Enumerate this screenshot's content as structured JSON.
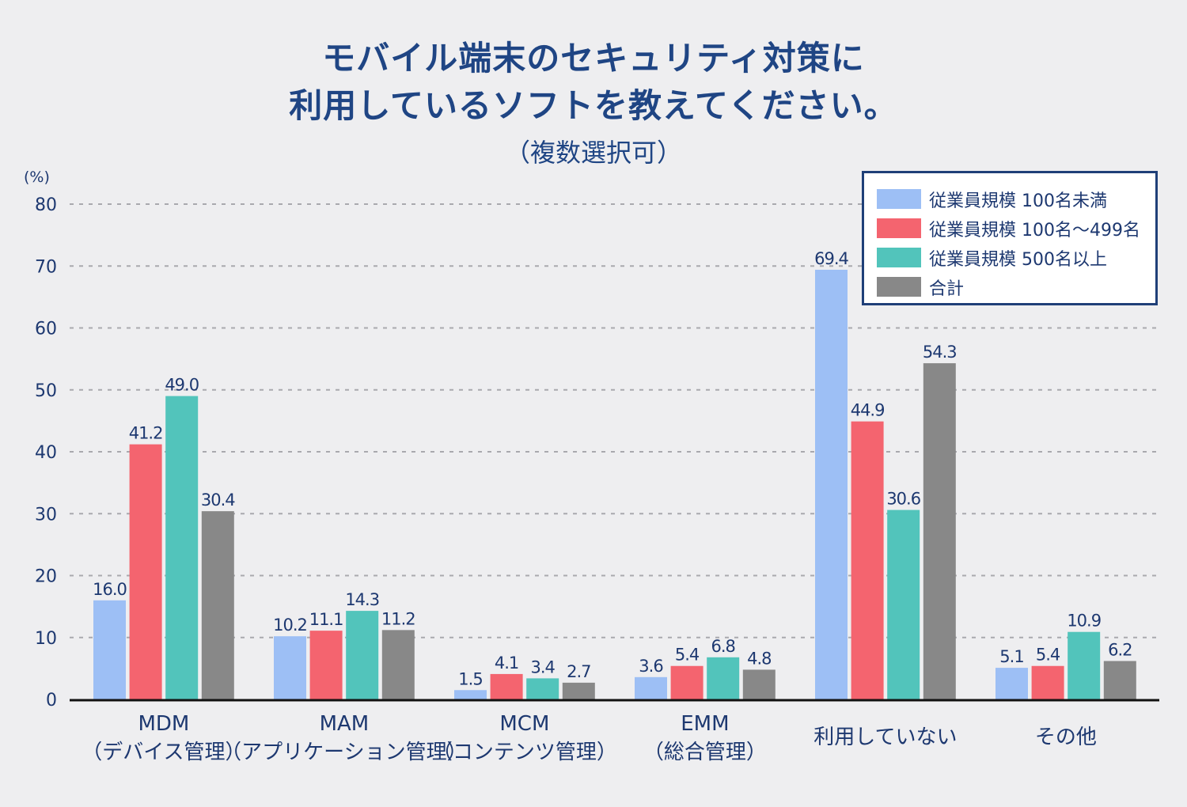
{
  "title": {
    "line1": "モバイル端末のセキュリティ対策に",
    "line2": "利用しているソフトを教えてください。",
    "subtitle": "（複数選択可）"
  },
  "chart_data": {
    "type": "bar",
    "title": "モバイル端末のセキュリティ対策に利用しているソフトを教えてください。（複数選択可）",
    "xlabel": "",
    "ylabel": "(%)",
    "ylim": [
      0,
      80
    ],
    "yticks": [
      0,
      10,
      20,
      30,
      40,
      50,
      60,
      70,
      80
    ],
    "grid": true,
    "legend_position": "top-right",
    "categories": [
      {
        "line1": "MDM",
        "line2": "（デバイス管理）"
      },
      {
        "line1": "MAM",
        "line2": "（アプリケーション管理）"
      },
      {
        "line1": "MCM",
        "line2": "（コンテンツ管理）"
      },
      {
        "line1": "EMM",
        "line2": "（総合管理）"
      },
      {
        "line1": "利用していない",
        "line2": ""
      },
      {
        "line1": "その他",
        "line2": ""
      }
    ],
    "series": [
      {
        "name": "従業員規模 100名未満",
        "color": "#9dbff5",
        "values": [
          16.0,
          10.2,
          1.5,
          3.6,
          69.4,
          5.1
        ]
      },
      {
        "name": "従業員規模 100名〜499名",
        "color": "#f4646f",
        "values": [
          41.2,
          11.1,
          4.1,
          5.4,
          44.9,
          5.4
        ]
      },
      {
        "name": "従業員規模 500名以上",
        "color": "#52c4bb",
        "values": [
          49.0,
          14.3,
          3.4,
          6.8,
          30.6,
          10.9
        ]
      },
      {
        "name": "合計",
        "color": "#888888",
        "values": [
          30.4,
          11.2,
          2.7,
          4.8,
          54.3,
          6.2
        ]
      }
    ]
  }
}
